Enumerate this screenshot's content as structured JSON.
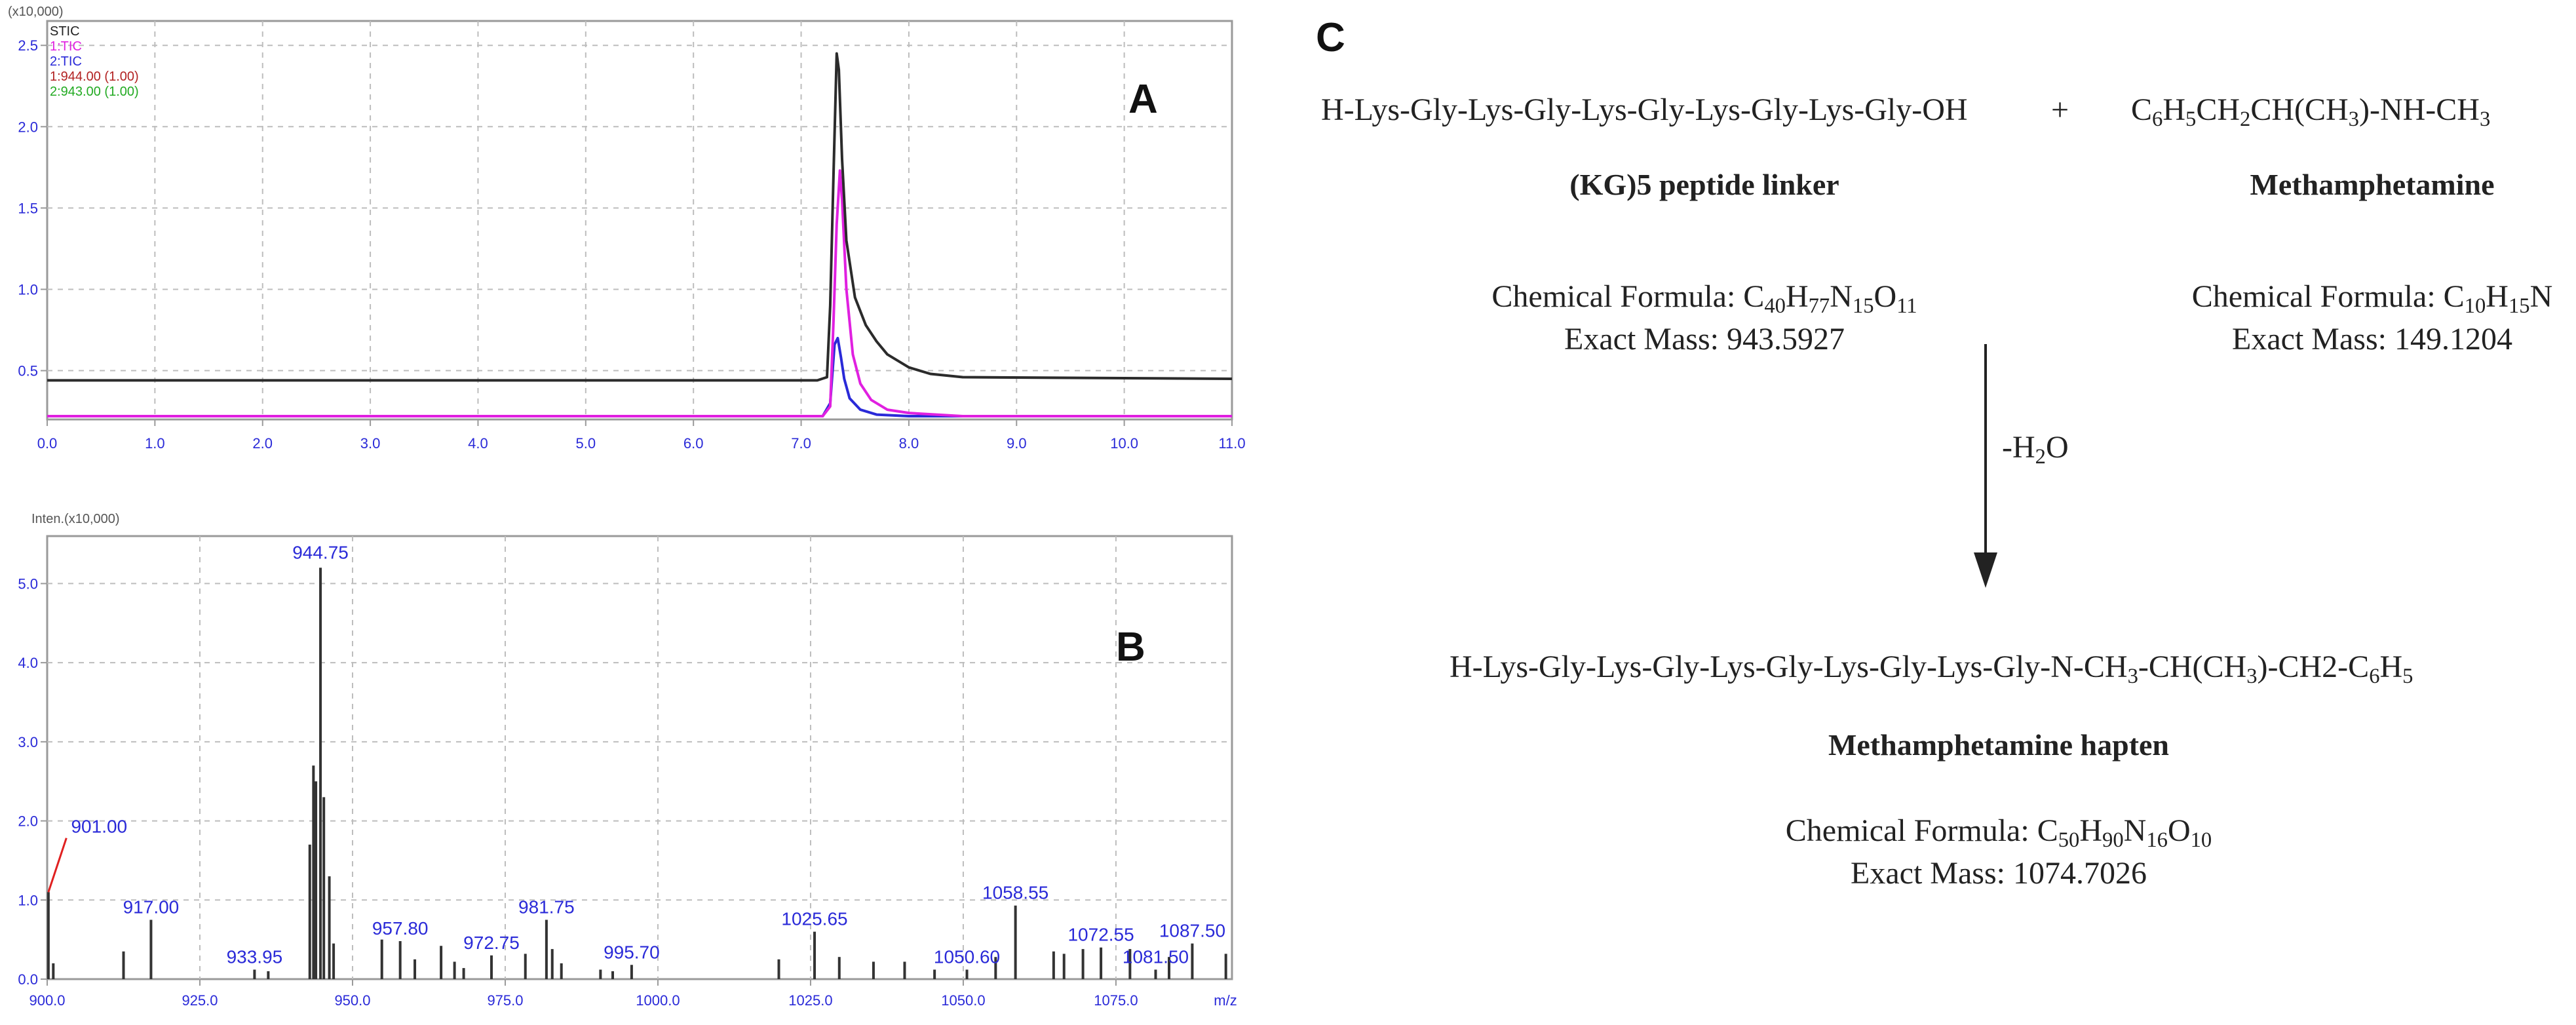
{
  "colors": {
    "frame": "#9a9a9a",
    "grid": "#bdbdbd",
    "tic_black": "#2b2b2b",
    "tic_magenta": "#e020e0",
    "tic_blue": "#2a2ad8",
    "peak_label": "#2a2ad8",
    "label_leader": "#e02020",
    "ms_bar": "#333333"
  },
  "chart_data": [
    {
      "type": "line",
      "panel_label": "A",
      "y_multiplier_label": "(x10,000)",
      "legend": [
        {
          "text": "STIC",
          "color": "#222222"
        },
        {
          "text": "1:TIC",
          "color": "#e020e0"
        },
        {
          "text": "2:TIC",
          "color": "#2a2ad8"
        },
        {
          "text": "1:944.00 (1.00)",
          "color": "#b22222"
        },
        {
          "text": "2:943.00 (1.00)",
          "color": "#22aa22"
        }
      ],
      "xlim": [
        0,
        11
      ],
      "ylim": [
        0.2,
        2.65
      ],
      "x_ticks": [
        "0.0",
        "1.0",
        "2.0",
        "3.0",
        "4.0",
        "5.0",
        "6.0",
        "7.0",
        "8.0",
        "9.0",
        "10.0",
        "11.0"
      ],
      "y_ticks": [
        "0.5",
        "1.0",
        "1.5",
        "2.0",
        "2.5"
      ],
      "series": [
        {
          "name": "STIC",
          "color": "#2b2b2b",
          "x": [
            0,
            7.15,
            7.24,
            7.27,
            7.3,
            7.33,
            7.35,
            7.38,
            7.42,
            7.5,
            7.6,
            7.7,
            7.8,
            8.0,
            8.2,
            8.5,
            11
          ],
          "y": [
            0.44,
            0.44,
            0.46,
            0.9,
            1.7,
            2.45,
            2.35,
            1.8,
            1.3,
            0.95,
            0.78,
            0.68,
            0.6,
            0.52,
            0.48,
            0.46,
            0.45
          ]
        },
        {
          "name": "1:TIC",
          "color": "#e020e0",
          "x": [
            0,
            7.2,
            7.27,
            7.3,
            7.33,
            7.36,
            7.38,
            7.42,
            7.48,
            7.55,
            7.65,
            7.8,
            8.0,
            8.5,
            11
          ],
          "y": [
            0.22,
            0.22,
            0.28,
            0.8,
            1.4,
            1.73,
            1.55,
            1.0,
            0.6,
            0.42,
            0.32,
            0.26,
            0.24,
            0.22,
            0.22
          ]
        },
        {
          "name": "2:TIC",
          "color": "#2a2ad8",
          "x": [
            0,
            7.2,
            7.27,
            7.31,
            7.34,
            7.37,
            7.4,
            7.45,
            7.55,
            7.7,
            8.0,
            11
          ],
          "y": [
            0.22,
            0.22,
            0.3,
            0.66,
            0.7,
            0.58,
            0.45,
            0.33,
            0.26,
            0.23,
            0.22,
            0.22
          ]
        }
      ]
    },
    {
      "type": "bar",
      "panel_label": "B",
      "y_multiplier_label": "Inten.(x10,000)",
      "x_unit": "m/z",
      "xlim": [
        900,
        1094
      ],
      "ylim": [
        0,
        5.6
      ],
      "x_ticks": [
        "900.0",
        "925.0",
        "950.0",
        "975.0",
        "1000.0",
        "1025.0",
        "1050.0",
        "1075.0"
      ],
      "y_ticks": [
        "0.0",
        "1.0",
        "2.0",
        "3.0",
        "4.0",
        "5.0"
      ],
      "mz": [
        900.2,
        901.0,
        912.5,
        917.0,
        933.95,
        936.2,
        943.0,
        943.6,
        944.0,
        944.75,
        945.3,
        946.2,
        946.9,
        954.8,
        957.8,
        960.2,
        964.5,
        966.7,
        968.2,
        972.75,
        978.3,
        981.75,
        982.7,
        984.2,
        990.6,
        992.6,
        995.7,
        1019.8,
        1025.65,
        1029.7,
        1035.3,
        1040.4,
        1045.3,
        1050.6,
        1055.3,
        1058.55,
        1064.8,
        1066.5,
        1069.6,
        1072.55,
        1077.3,
        1081.5,
        1083.7,
        1087.5,
        1093.0
      ],
      "intensity": [
        1.1,
        0.2,
        0.35,
        0.75,
        0.12,
        0.1,
        1.7,
        2.7,
        2.5,
        5.2,
        2.3,
        1.3,
        0.45,
        0.5,
        0.48,
        0.25,
        0.42,
        0.22,
        0.14,
        0.3,
        0.32,
        0.75,
        0.38,
        0.2,
        0.12,
        0.1,
        0.18,
        0.25,
        0.6,
        0.28,
        0.22,
        0.22,
        0.12,
        0.12,
        0.28,
        0.93,
        0.35,
        0.32,
        0.38,
        0.4,
        0.38,
        0.12,
        0.28,
        0.45,
        0.32
      ],
      "peak_labels": [
        {
          "mz": 901.0,
          "text": "901.00"
        },
        {
          "mz": 917.0,
          "text": "917.00"
        },
        {
          "mz": 933.95,
          "text": "933.95"
        },
        {
          "mz": 944.75,
          "text": "944.75"
        },
        {
          "mz": 957.8,
          "text": "957.80"
        },
        {
          "mz": 972.75,
          "text": "972.75"
        },
        {
          "mz": 981.75,
          "text": "981.75"
        },
        {
          "mz": 995.7,
          "text": "995.70"
        },
        {
          "mz": 1025.65,
          "text": "1025.65"
        },
        {
          "mz": 1050.6,
          "text": "1050.60"
        },
        {
          "mz": 1058.55,
          "text": "1058.55"
        },
        {
          "mz": 1072.55,
          "text": "1072.55"
        },
        {
          "mz": 1081.5,
          "text": "1081.50"
        },
        {
          "mz": 1087.5,
          "text": "1087.50"
        }
      ]
    }
  ],
  "scheme": {
    "panel_label": "C",
    "reactant1": {
      "formula_text": "H-Lys-Gly-Lys-Gly-Lys-Gly-Lys-Gly-Lys-Gly-OH",
      "name": "(KG)5 peptide linker",
      "chem_label": "Chemical Formula:",
      "chem_formula": [
        {
          "t": "C"
        },
        {
          "s": "40"
        },
        {
          "t": "H"
        },
        {
          "s": "77"
        },
        {
          "t": "N"
        },
        {
          "s": "15"
        },
        {
          "t": "O"
        },
        {
          "s": "11"
        }
      ],
      "mass": "Exact Mass: 943.5927"
    },
    "plus": "+",
    "reactant2": {
      "formula_text": [
        {
          "t": "C"
        },
        {
          "s": "6"
        },
        {
          "t": "H"
        },
        {
          "s": "5"
        },
        {
          "t": "CH"
        },
        {
          "s": "2"
        },
        {
          "t": "CH(CH"
        },
        {
          "s": "3"
        },
        {
          "t": ")-NH-CH"
        },
        {
          "s": "3"
        }
      ],
      "name": "Methamphetamine",
      "chem_label": "Chemical Formula:",
      "chem_formula": [
        {
          "t": "C"
        },
        {
          "s": "10"
        },
        {
          "t": "H"
        },
        {
          "s": "15"
        },
        {
          "t": "N"
        }
      ],
      "mass": "Exact Mass: 149.1204"
    },
    "arrow_label": [
      {
        "t": "-H"
      },
      {
        "s": "2"
      },
      {
        "t": "O"
      }
    ],
    "product": {
      "formula_text": [
        {
          "t": "H-Lys-Gly-Lys-Gly-Lys-Gly-Lys-Gly-Lys-Gly-N-CH"
        },
        {
          "s": "3"
        },
        {
          "t": "-CH(CH"
        },
        {
          "s": "3"
        },
        {
          "t": ")-CH2-C"
        },
        {
          "s": "6"
        },
        {
          "t": "H"
        },
        {
          "s": "5"
        }
      ],
      "name": "Methamphetamine hapten",
      "chem_label": "Chemical Formula:",
      "chem_formula": [
        {
          "t": "C"
        },
        {
          "s": "50"
        },
        {
          "t": "H"
        },
        {
          "s": "90"
        },
        {
          "t": "N"
        },
        {
          "s": "16"
        },
        {
          "t": "O"
        },
        {
          "s": "10"
        }
      ],
      "mass": "Exact Mass: 1074.7026"
    }
  }
}
